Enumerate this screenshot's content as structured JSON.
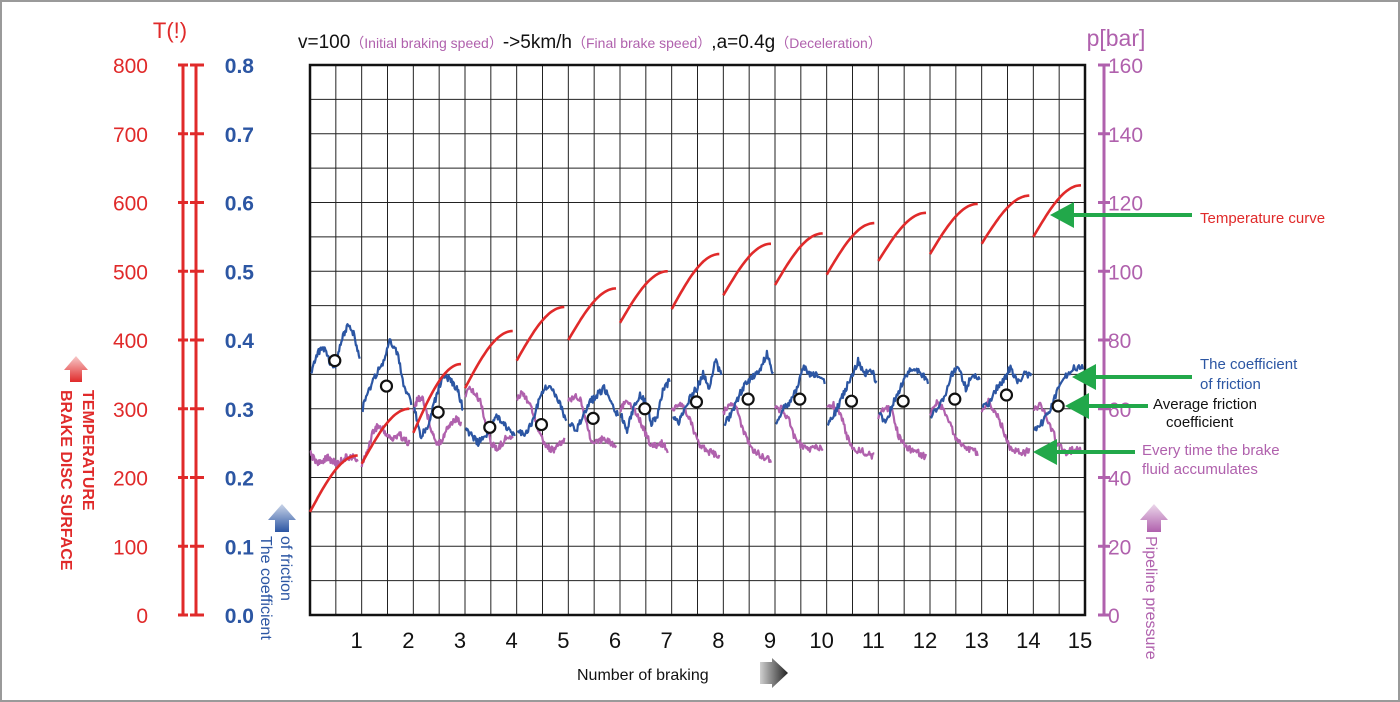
{
  "chart_data": {
    "type": "line",
    "title": {
      "v_part": "v=100",
      "v_note": "（Initial braking speed）",
      "final_part": "->5km/h",
      "final_note": "（Final brake speed）",
      "a_part": ",a=0.4g",
      "a_note": "（Deceleration）"
    },
    "axes": {
      "temperature": {
        "unit_label": "T(!)",
        "title_line1": "TEMPERATURE",
        "title_line2": "BRAKE DISC SURFACE",
        "min": 0,
        "max": 800,
        "ticks": [
          "0",
          "100",
          "200",
          "300",
          "400",
          "500",
          "600",
          "700",
          "800"
        ],
        "color": "#e02a2a"
      },
      "friction": {
        "title_line1": "The coefficient",
        "title_line2": "of friction",
        "min": 0.0,
        "max": 0.8,
        "ticks": [
          "0.0",
          "0.1",
          "0.2",
          "0.3",
          "0.4",
          "0.5",
          "0.6",
          "0.7",
          "0.8"
        ],
        "color": "#2c56a3"
      },
      "pressure": {
        "unit_label": "p[bar]",
        "title": "Pipeline pressure",
        "min": 0,
        "max": 160,
        "ticks": [
          "0",
          "20",
          "40",
          "60",
          "80",
          "100",
          "120",
          "140",
          "160"
        ],
        "color": "#b061ad"
      },
      "x": {
        "title": "Number of braking",
        "ticks": [
          "1",
          "2",
          "3",
          "4",
          "5",
          "6",
          "7",
          "8",
          "9",
          "10",
          "11",
          "12",
          "13",
          "14",
          "15"
        ]
      }
    },
    "grid": true,
    "temperature_series": [
      {
        "start": 150,
        "end": 232
      },
      {
        "start": 220,
        "end": 300
      },
      {
        "start": 265,
        "end": 365
      },
      {
        "start": 330,
        "end": 413
      },
      {
        "start": 370,
        "end": 448
      },
      {
        "start": 400,
        "end": 475
      },
      {
        "start": 425,
        "end": 500
      },
      {
        "start": 445,
        "end": 525
      },
      {
        "start": 465,
        "end": 540
      },
      {
        "start": 480,
        "end": 555
      },
      {
        "start": 495,
        "end": 570
      },
      {
        "start": 515,
        "end": 585
      },
      {
        "start": 525,
        "end": 598
      },
      {
        "start": 540,
        "end": 610
      },
      {
        "start": 550,
        "end": 625
      }
    ],
    "friction_series": [
      [
        0.35,
        0.38,
        0.39,
        0.37,
        0.36,
        0.4,
        0.42,
        0.41,
        0.37
      ],
      [
        0.3,
        0.33,
        0.35,
        0.37,
        0.4,
        0.38,
        0.33,
        0.31
      ],
      [
        0.3,
        0.26,
        0.27,
        0.3,
        0.33,
        0.35,
        0.34,
        0.33,
        0.3
      ],
      [
        0.27,
        0.26,
        0.25,
        0.26,
        0.27,
        0.29,
        0.28,
        0.27,
        0.26
      ],
      [
        0.27,
        0.26,
        0.28,
        0.31,
        0.33,
        0.33,
        0.31,
        0.28
      ],
      [
        0.28,
        0.27,
        0.29,
        0.31,
        0.32,
        0.33,
        0.31,
        0.29
      ],
      [
        0.29,
        0.27,
        0.3,
        0.32,
        0.31,
        0.28,
        0.29,
        0.33,
        0.34
      ],
      [
        0.29,
        0.28,
        0.3,
        0.32,
        0.33,
        0.35,
        0.33,
        0.37,
        0.35
      ],
      [
        0.28,
        0.29,
        0.31,
        0.33,
        0.34,
        0.35,
        0.36,
        0.38,
        0.35
      ],
      [
        0.28,
        0.3,
        0.31,
        0.33,
        0.36,
        0.35,
        0.35,
        0.34
      ],
      [
        0.28,
        0.29,
        0.31,
        0.33,
        0.35,
        0.37,
        0.35,
        0.36,
        0.34
      ],
      [
        0.29,
        0.28,
        0.31,
        0.33,
        0.35,
        0.36,
        0.35,
        0.34
      ],
      [
        0.29,
        0.3,
        0.32,
        0.35,
        0.36,
        0.33,
        0.35,
        0.34
      ],
      [
        0.3,
        0.31,
        0.33,
        0.34,
        0.36,
        0.34,
        0.35,
        0.35
      ],
      [
        0.27,
        0.28,
        0.3,
        0.33,
        0.35,
        0.36,
        0.36
      ]
    ],
    "pressure_series": [
      [
        47,
        45,
        44,
        46,
        45,
        44,
        45,
        46,
        46,
        45
      ],
      [
        44,
        47,
        53,
        55,
        54,
        52,
        51,
        53,
        51,
        50
      ],
      [
        60,
        63,
        63,
        58,
        53,
        50,
        51,
        54,
        56,
        57,
        56
      ],
      [
        64,
        66,
        64,
        62,
        55,
        50,
        48,
        50,
        52,
        51
      ],
      [
        63,
        65,
        62,
        58,
        52,
        49,
        48,
        49,
        51
      ],
      [
        62,
        64,
        63,
        56,
        50,
        50,
        52,
        50,
        49
      ],
      [
        60,
        62,
        61,
        58,
        54,
        50,
        49,
        50,
        48
      ],
      [
        59,
        61,
        60,
        55,
        50,
        48,
        47,
        46
      ],
      [
        59,
        61,
        60,
        53,
        49,
        47,
        46,
        45
      ],
      [
        60,
        60,
        57,
        51,
        49,
        48,
        49,
        48
      ],
      [
        61,
        61,
        59,
        52,
        48,
        48,
        47,
        46
      ],
      [
        58,
        61,
        59,
        52,
        49,
        48,
        47,
        46
      ],
      [
        58,
        62,
        60,
        55,
        51,
        49,
        48,
        47
      ],
      [
        59,
        62,
        59,
        55,
        49,
        48,
        47,
        48
      ],
      [
        60,
        61,
        56,
        50,
        47,
        48,
        48
      ]
    ],
    "average_friction": [
      0.37,
      0.333,
      0.295,
      0.273,
      0.277,
      0.286,
      0.3,
      0.31,
      0.314,
      0.314,
      0.311,
      0.311,
      0.314,
      0.32,
      0.304
    ],
    "annotations": {
      "temperature_curve": "Temperature curve",
      "friction_line1": "The coefficient",
      "friction_line2": "of friction",
      "avg_line1": "Average friction",
      "avg_line2": "coefficient",
      "fluid_line1": "Every time the brake",
      "fluid_line2": "fluid accumulates"
    },
    "arrow_color": "#22a84a"
  }
}
